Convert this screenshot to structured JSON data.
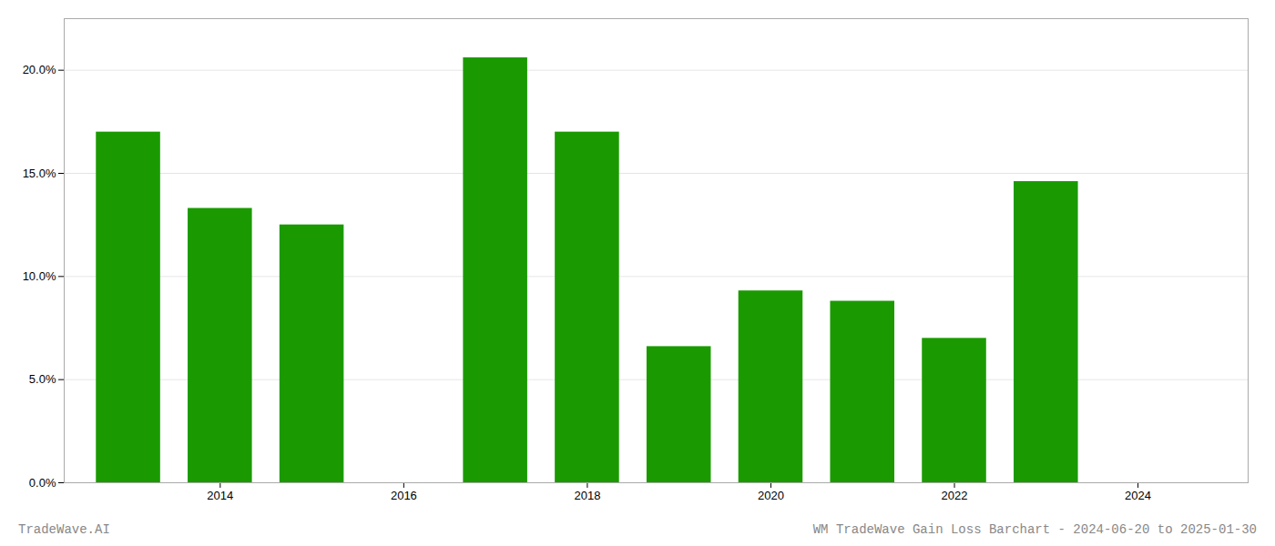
{
  "chart_data": {
    "type": "bar",
    "x": [
      2013,
      2014,
      2015,
      2017,
      2018,
      2019,
      2020,
      2021,
      2022,
      2023
    ],
    "values": [
      0.17,
      0.133,
      0.125,
      0.206,
      0.17,
      0.066,
      0.093,
      0.088,
      0.07,
      0.146
    ],
    "color": "#1a9a00",
    "xlim": [
      2012.3,
      2025.2
    ],
    "xticks": [
      2014,
      2016,
      2018,
      2020,
      2022,
      2024
    ],
    "ylim": [
      0.0,
      0.225
    ],
    "yticks": [
      {
        "value": 0.0,
        "label": "0.0%"
      },
      {
        "value": 0.05,
        "label": "5.0%"
      },
      {
        "value": 0.1,
        "label": "10.0%"
      },
      {
        "value": 0.15,
        "label": "15.0%"
      },
      {
        "value": 0.2,
        "label": "20.0%"
      }
    ],
    "grid": true,
    "annotations": [
      "TradeWave.AI",
      "WM TradeWave Gain Loss Barchart - 2024-06-20 to 2025-01-30"
    ]
  }
}
